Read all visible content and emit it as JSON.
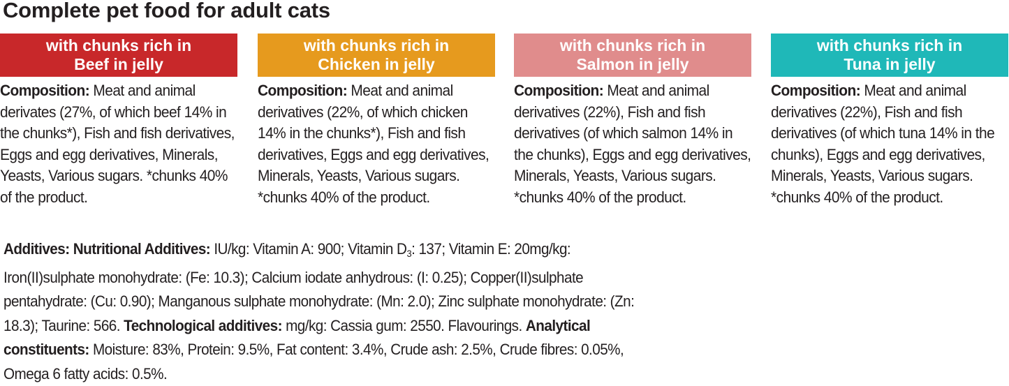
{
  "title": "Complete pet food for adult cats",
  "variants": [
    {
      "banner_line1": "with chunks rich in",
      "banner_line2": "Beef in jelly",
      "color": "#c8282a",
      "composition_label": "Composition:",
      "composition_text": " Meat and animal derivates (27%, of which beef 14% in the chunks*), Fish and fish derivatives, Eggs and egg derivatives, Minerals, Yeasts, Various sugars. *chunks 40% of the product."
    },
    {
      "banner_line1": "with chunks rich in",
      "banner_line2": "Chicken in jelly",
      "color": "#e69a1e",
      "composition_label": "Composition:",
      "composition_text": " Meat and animal derivatives (22%, of which chicken 14% in the chunks*), Fish and fish derivatives, Eggs and egg derivatives, Minerals, Yeasts, Various sugars. *chunks 40% of the product."
    },
    {
      "banner_line1": "with chunks rich in",
      "banner_line2": "Salmon in jelly",
      "color": "#e08c8c",
      "composition_label": "Composition:",
      "composition_text": " Meat and animal derivatives (22%), Fish and fish derivatives (of which salmon 14% in the chunks), Eggs and egg derivatives, Minerals, Yeasts, Various sugars. *chunks 40% of the product."
    },
    {
      "banner_line1": "with chunks rich in",
      "banner_line2": "Tuna in jelly",
      "color": "#1fb8b8",
      "composition_label": "Composition:",
      "composition_text": " Meat and animal derivatives (22%), Fish and fish derivatives (of which tuna 14% in the chunks), Eggs and egg derivatives, Minerals, Yeasts, Various sugars. *chunks 40% of the product."
    }
  ],
  "additives": {
    "label": "Additives: Nutritional Additives:",
    "text1": " IU/kg: Vitamin A: 900; Vitamin D",
    "vitd_sub": "3",
    "text2": ": 137; Vitamin E: 20mg/kg: Iron(II)sulphate monohydrate: (Fe: 10.3); Calcium iodate anhydrous: (I: 0.25); Copper(II)sulphate pentahydrate: (Cu: 0.90); Manganous sulphate monohydrate: (Mn: 2.0); Zinc sulphate monohydrate: (Zn: 18.3); Taurine: 566. ",
    "tech_label": "Technological additives:",
    "tech_text": "  mg/kg: Cassia gum: 2550. Flavourings. ",
    "analytical_label": "Analytical constituents:",
    "analytical_text": "  Moisture: 83%, Protein: 9.5%, Fat content: 3.4%, Crude ash: 2.5%, Crude fibres: 0.05%, Omega 6 fatty acids: 0.5%."
  }
}
